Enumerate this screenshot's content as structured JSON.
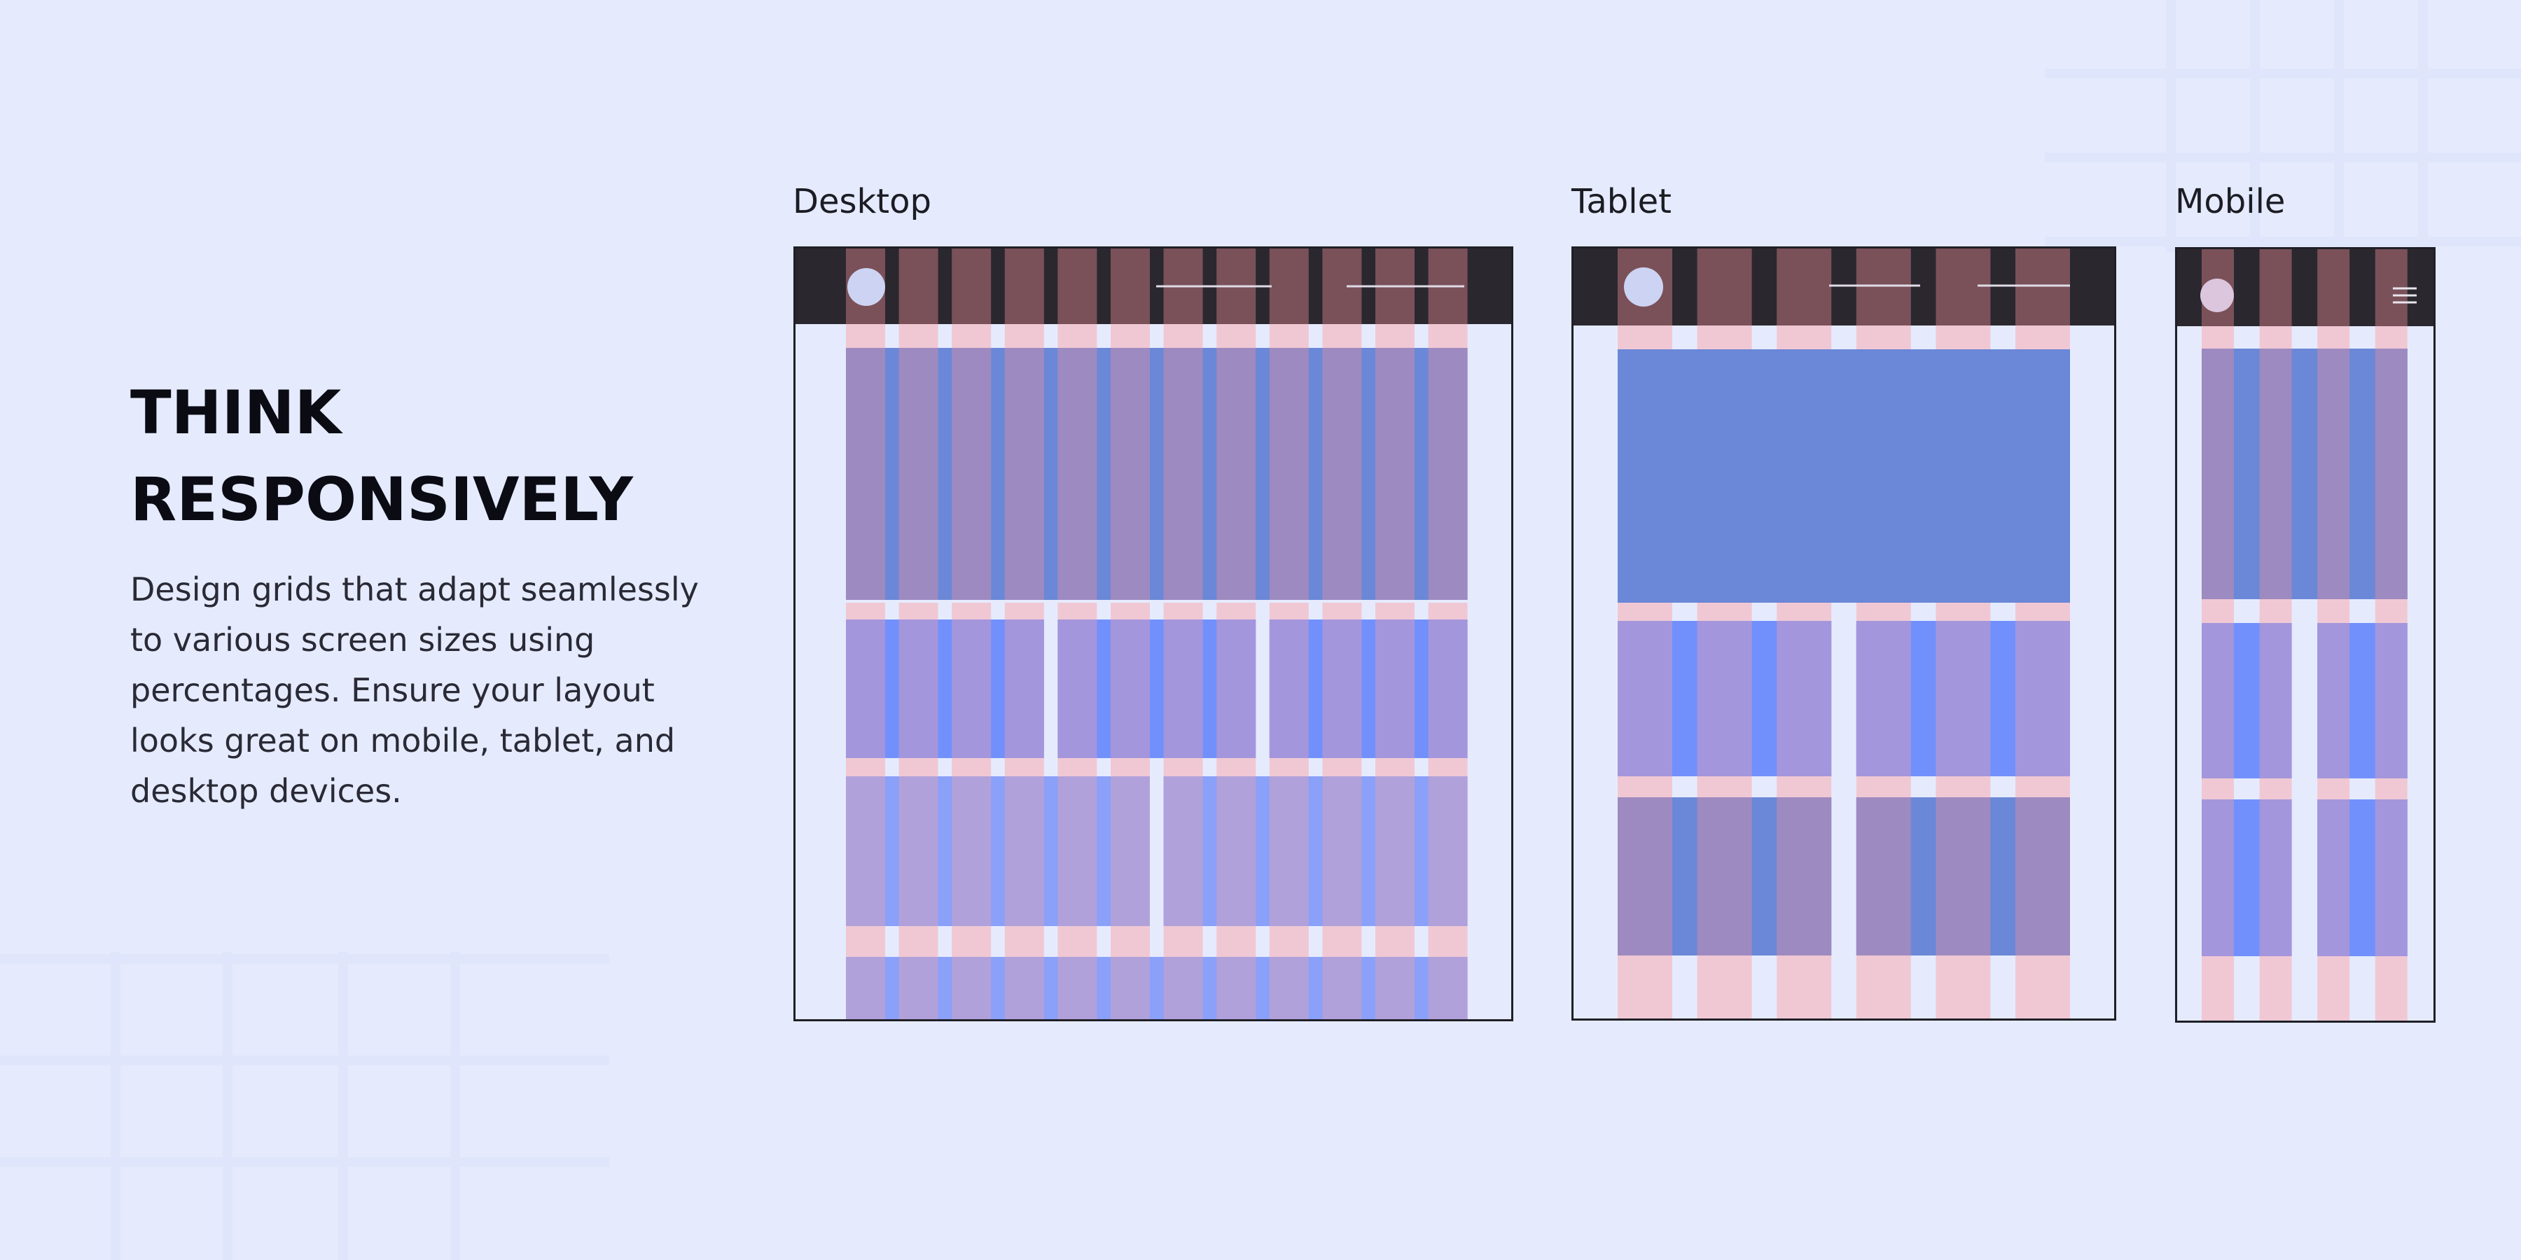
{
  "headline": [
    "THINK",
    "RESPONSIVELY"
  ],
  "description": [
    "Design grids that adapt seamlessly",
    "to various screen sizes using",
    "percentages. Ensure your layout",
    "looks great on mobile, tablet, and",
    "desktop devices."
  ],
  "devices": {
    "desktop": {
      "label": "Desktop",
      "columns": 12
    },
    "tablet": {
      "label": "Tablet",
      "columns": 6
    },
    "mobile": {
      "label": "Mobile",
      "columns": 4
    }
  },
  "icons": {
    "logo": "circle-logo-icon",
    "menu": "hamburger-menu-icon",
    "nav": "nav-link-line-icon"
  },
  "colors": {
    "background": "#e5ebfd",
    "header_bar": "#2a272f",
    "header_column": "#7a5159",
    "gutter_pink": "#f0c8d4",
    "column_purple_dark": "#9d8ac0",
    "column_purple": "#a496dc",
    "column_purple_light": "#b1a1da",
    "gutter_blue": "#6b87d7",
    "gutter_blue_bright": "#7190fc",
    "gutter_blue_light": "#8aa0f9",
    "hero_tablet": "#6b87d7",
    "logo_desktop_tablet": "#cdd4f3",
    "logo_mobile": "#dcc6dd",
    "frame_border": "#1f1f27"
  }
}
